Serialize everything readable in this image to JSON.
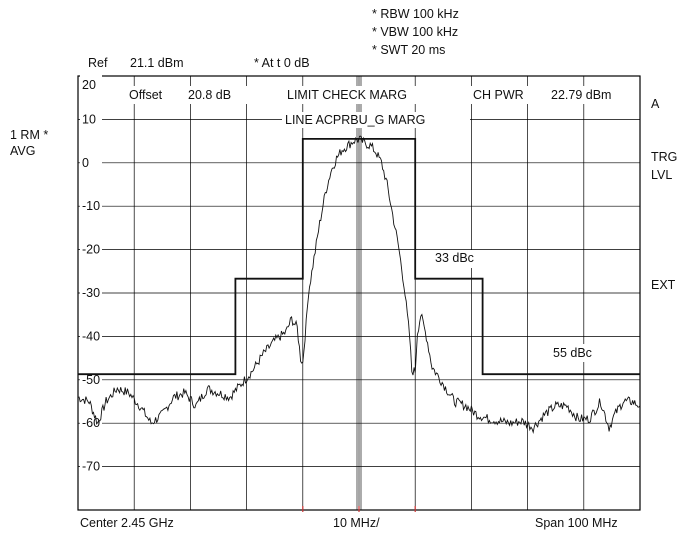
{
  "header": {
    "rbw": "* RBW 100 kHz",
    "vbw": "* VBW 100 kHz",
    "swt": "* SWT 20 ms",
    "ref_label": "Ref",
    "ref_value": "21.1 dBm",
    "atten": "* At t  0 dB"
  },
  "left_panel": {
    "line1": "1 RM *",
    "line2": "AVG"
  },
  "right_panel": {
    "a": "A",
    "trg": "TRG",
    "lvl": "LVL",
    "ext": "EXT"
  },
  "screen_labels": {
    "offset_label": "Offset",
    "offset_value": "20.8 dB",
    "limit_check": "LIMIT CHECK MARG",
    "line_name": "LINE ACPRBU_G MARG",
    "ch_pwr_label": "CH PWR",
    "ch_pwr_value": "22.79 dBm",
    "dbc_33": "33 dBc",
    "dbc_55": "55 dBc"
  },
  "footer": {
    "center": "Center 2.45 GHz",
    "div": "10 MHz/",
    "span": "Span 100 MHz"
  },
  "colors": {
    "trace": "#111111",
    "grid": "#000000",
    "marker": "#cc3333"
  },
  "chart_data": {
    "type": "line",
    "xlabel": "",
    "ylabel": "",
    "xlim": [
      -50,
      50
    ],
    "ylim": [
      -80,
      20
    ],
    "grid": true,
    "y_ticks": [
      "20",
      "10",
      "0",
      "-10",
      "-20",
      "-30",
      "-40",
      "-50",
      "-60",
      "-70"
    ],
    "limit_line": {
      "x": [
        -50,
        -22,
        -22,
        -10,
        -10,
        10,
        10,
        22,
        22,
        50
      ],
      "y": [
        -48.7,
        -48.7,
        -26.7,
        -26.7,
        5.5,
        5.5,
        -26.7,
        -26.7,
        -48.7,
        -48.7
      ]
    },
    "trace": {
      "x": [
        -50,
        -48,
        -46.5,
        -45,
        -43,
        -41,
        -39,
        -37,
        -35,
        -33,
        -31,
        -29,
        -27,
        -25,
        -23,
        -21,
        -19,
        -17,
        -15,
        -13,
        -12,
        -11,
        -10.4,
        -10,
        -9.4,
        -9,
        -8,
        -7,
        -6,
        -5,
        -4,
        -3,
        -2,
        -1,
        0,
        1,
        2,
        3,
        4,
        5,
        6,
        7,
        8,
        9,
        9.4,
        10,
        10.4,
        11,
        12,
        13,
        15,
        17,
        19,
        21,
        23,
        25,
        27,
        29,
        31,
        33,
        35,
        37,
        39,
        41,
        43,
        44.5,
        45.5,
        47,
        48.5,
        50
      ],
      "y": [
        -54,
        -55,
        -60,
        -55,
        -52,
        -53,
        -56,
        -60,
        -58,
        -54,
        -53,
        -56,
        -52,
        -53,
        -54,
        -51,
        -48,
        -44,
        -41,
        -39,
        -36,
        -38,
        -45,
        -46,
        -37,
        -30,
        -22,
        -14,
        -7,
        -2,
        1,
        3,
        4,
        5,
        5.5,
        4.5,
        4,
        2.5,
        0,
        -5,
        -12,
        -19,
        -28,
        -40,
        -48,
        -48,
        -39,
        -35,
        -40,
        -47,
        -51,
        -55,
        -56,
        -58,
        -59,
        -59.5,
        -60,
        -59.5,
        -61,
        -58,
        -56,
        -56,
        -59,
        -59,
        -55,
        -61,
        -58,
        -55,
        -55,
        -56
      ]
    },
    "annotations": [
      "33 dBc",
      "55 dBc"
    ]
  }
}
